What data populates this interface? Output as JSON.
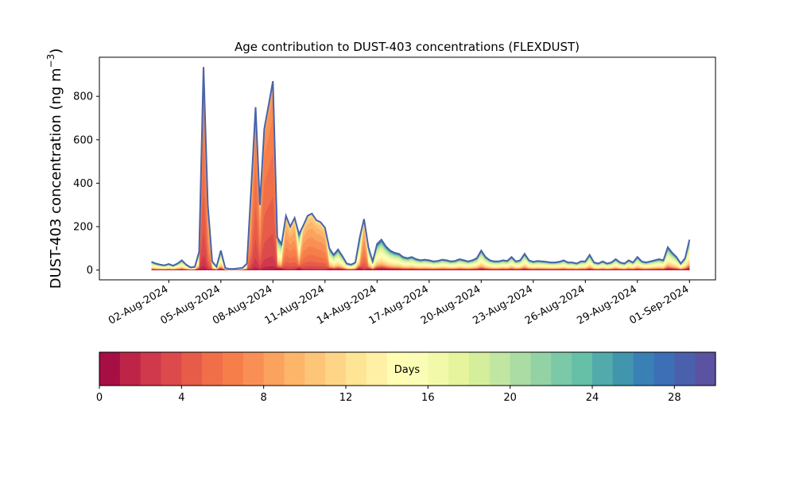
{
  "chart_data": {
    "type": "area",
    "stacked": true,
    "title": "Age contribution to DUST-403 concentrations (FLEXDUST)",
    "ylabel_main": "DUST-403 concentration (ng m",
    "ylabel_sup": "−3",
    "ylabel_close": ")",
    "xlabel": "",
    "ylim": [
      -45,
      980
    ],
    "yticks": [
      0,
      200,
      400,
      600,
      800
    ],
    "xlim": [
      "2024-07-29T00:00",
      "2024-09-02T12:00"
    ],
    "xticks": [
      "2024-08-02",
      "2024-08-05",
      "2024-08-08",
      "2024-08-11",
      "2024-08-14",
      "2024-08-17",
      "2024-08-20",
      "2024-08-23",
      "2024-08-26",
      "2024-08-29",
      "2024-09-01"
    ],
    "xtick_labels": [
      "02-Aug-2024",
      "05-Aug-2024",
      "08-Aug-2024",
      "11-Aug-2024",
      "14-Aug-2024",
      "17-Aug-2024",
      "20-Aug-2024",
      "23-Aug-2024",
      "26-Aug-2024",
      "29-Aug-2024",
      "01-Sep-2024"
    ],
    "grid": false,
    "total_line_color": "#4a63a8",
    "total": {
      "x": [
        "2024-08-01T00:00",
        "2024-08-01T06:00",
        "2024-08-01T12:00",
        "2024-08-01T18:00",
        "2024-08-02T00:00",
        "2024-08-02T06:00",
        "2024-08-02T12:00",
        "2024-08-02T18:00",
        "2024-08-03T00:00",
        "2024-08-03T06:00",
        "2024-08-03T12:00",
        "2024-08-03T18:00",
        "2024-08-04T00:00",
        "2024-08-04T06:00",
        "2024-08-04T12:00",
        "2024-08-04T18:00",
        "2024-08-05T00:00",
        "2024-08-05T06:00",
        "2024-08-05T12:00",
        "2024-08-05T18:00",
        "2024-08-06T00:00",
        "2024-08-06T06:00",
        "2024-08-06T12:00",
        "2024-08-06T18:00",
        "2024-08-07T00:00",
        "2024-08-07T06:00",
        "2024-08-07T12:00",
        "2024-08-07T18:00",
        "2024-08-08T00:00",
        "2024-08-08T06:00",
        "2024-08-08T12:00",
        "2024-08-08T18:00",
        "2024-08-09T00:00",
        "2024-08-09T06:00",
        "2024-08-09T12:00",
        "2024-08-09T18:00",
        "2024-08-10T00:00",
        "2024-08-10T06:00",
        "2024-08-10T12:00",
        "2024-08-10T18:00",
        "2024-08-11T00:00",
        "2024-08-11T06:00",
        "2024-08-11T12:00",
        "2024-08-11T18:00",
        "2024-08-12T00:00",
        "2024-08-12T06:00",
        "2024-08-12T12:00",
        "2024-08-12T18:00",
        "2024-08-13T00:00",
        "2024-08-13T06:00",
        "2024-08-13T12:00",
        "2024-08-13T18:00",
        "2024-08-14T00:00",
        "2024-08-14T06:00",
        "2024-08-14T12:00",
        "2024-08-14T18:00",
        "2024-08-15T00:00",
        "2024-08-15T06:00",
        "2024-08-15T12:00",
        "2024-08-15T18:00",
        "2024-08-16T00:00",
        "2024-08-16T06:00",
        "2024-08-16T12:00",
        "2024-08-16T18:00",
        "2024-08-17T00:00",
        "2024-08-17T06:00",
        "2024-08-17T12:00",
        "2024-08-17T18:00",
        "2024-08-18T00:00",
        "2024-08-18T06:00",
        "2024-08-18T12:00",
        "2024-08-18T18:00",
        "2024-08-19T00:00",
        "2024-08-19T06:00",
        "2024-08-19T12:00",
        "2024-08-19T18:00",
        "2024-08-20T00:00",
        "2024-08-20T06:00",
        "2024-08-20T12:00",
        "2024-08-20T18:00",
        "2024-08-21T00:00",
        "2024-08-21T06:00",
        "2024-08-21T12:00",
        "2024-08-21T18:00",
        "2024-08-22T00:00",
        "2024-08-22T06:00",
        "2024-08-22T12:00",
        "2024-08-22T18:00",
        "2024-08-23T00:00",
        "2024-08-23T06:00",
        "2024-08-23T12:00",
        "2024-08-23T18:00",
        "2024-08-24T00:00",
        "2024-08-24T06:00",
        "2024-08-24T12:00",
        "2024-08-24T18:00",
        "2024-08-25T00:00",
        "2024-08-25T06:00",
        "2024-08-25T12:00",
        "2024-08-25T18:00",
        "2024-08-26T00:00",
        "2024-08-26T06:00",
        "2024-08-26T12:00",
        "2024-08-26T18:00",
        "2024-08-27T00:00",
        "2024-08-27T06:00",
        "2024-08-27T12:00",
        "2024-08-27T18:00",
        "2024-08-28T00:00",
        "2024-08-28T06:00",
        "2024-08-28T12:00",
        "2024-08-28T18:00",
        "2024-08-29T00:00",
        "2024-08-29T06:00",
        "2024-08-29T12:00",
        "2024-08-29T18:00",
        "2024-08-30T00:00",
        "2024-08-30T06:00",
        "2024-08-30T12:00",
        "2024-08-30T18:00",
        "2024-08-31T00:00",
        "2024-08-31T06:00",
        "2024-08-31T12:00",
        "2024-08-31T18:00",
        "2024-09-01T00:00"
      ],
      "y": [
        38,
        30,
        25,
        22,
        28,
        20,
        30,
        45,
        25,
        12,
        15,
        85,
        935,
        300,
        40,
        15,
        90,
        10,
        5,
        5,
        8,
        10,
        30,
        380,
        750,
        300,
        650,
        760,
        870,
        150,
        120,
        250,
        200,
        240,
        165,
        205,
        250,
        260,
        230,
        220,
        195,
        100,
        70,
        95,
        65,
        30,
        25,
        35,
        150,
        235,
        105,
        40,
        120,
        140,
        110,
        90,
        80,
        75,
        60,
        55,
        60,
        50,
        45,
        48,
        45,
        40,
        42,
        48,
        45,
        40,
        42,
        50,
        45,
        40,
        45,
        55,
        90,
        60,
        45,
        40,
        40,
        45,
        42,
        60,
        40,
        45,
        75,
        45,
        38,
        42,
        40,
        38,
        35,
        35,
        38,
        45,
        35,
        35,
        30,
        40,
        40,
        70,
        35,
        30,
        40,
        30,
        35,
        50,
        35,
        30,
        45,
        35,
        60,
        40,
        35,
        40,
        45,
        50,
        45,
        105,
        80,
        60,
        30,
        55,
        140
      ]
    },
    "age_bins": {
      "name": "Days",
      "edges": [
        0,
        1,
        2,
        3,
        4,
        5,
        6,
        7,
        8,
        9,
        10,
        11,
        12,
        13,
        14,
        15,
        16,
        17,
        18,
        19,
        20,
        21,
        22,
        23,
        24,
        25,
        26,
        27,
        28,
        29,
        30
      ],
      "ticks": [
        0,
        4,
        8,
        12,
        16,
        20,
        24,
        28
      ],
      "colors": [
        "#a50f44",
        "#bd2447",
        "#d0384c",
        "#dc4a4c",
        "#e65c49",
        "#f06f49",
        "#f57e4b",
        "#f98f55",
        "#fca25f",
        "#fdb569",
        "#fdc577",
        "#fed586",
        "#fee495",
        "#fff0a6",
        "#fffcb4",
        "#fbfdb6",
        "#f2faaa",
        "#e5f49d",
        "#d5ee9c",
        "#c1e6a1",
        "#aadca4",
        "#92d2a5",
        "#7bc9a6",
        "#66bfa7",
        "#52aaaa",
        "#4195ad",
        "#3981b5",
        "#3c6fb5",
        "#4b60ad",
        "#5c52a2"
      ]
    }
  }
}
